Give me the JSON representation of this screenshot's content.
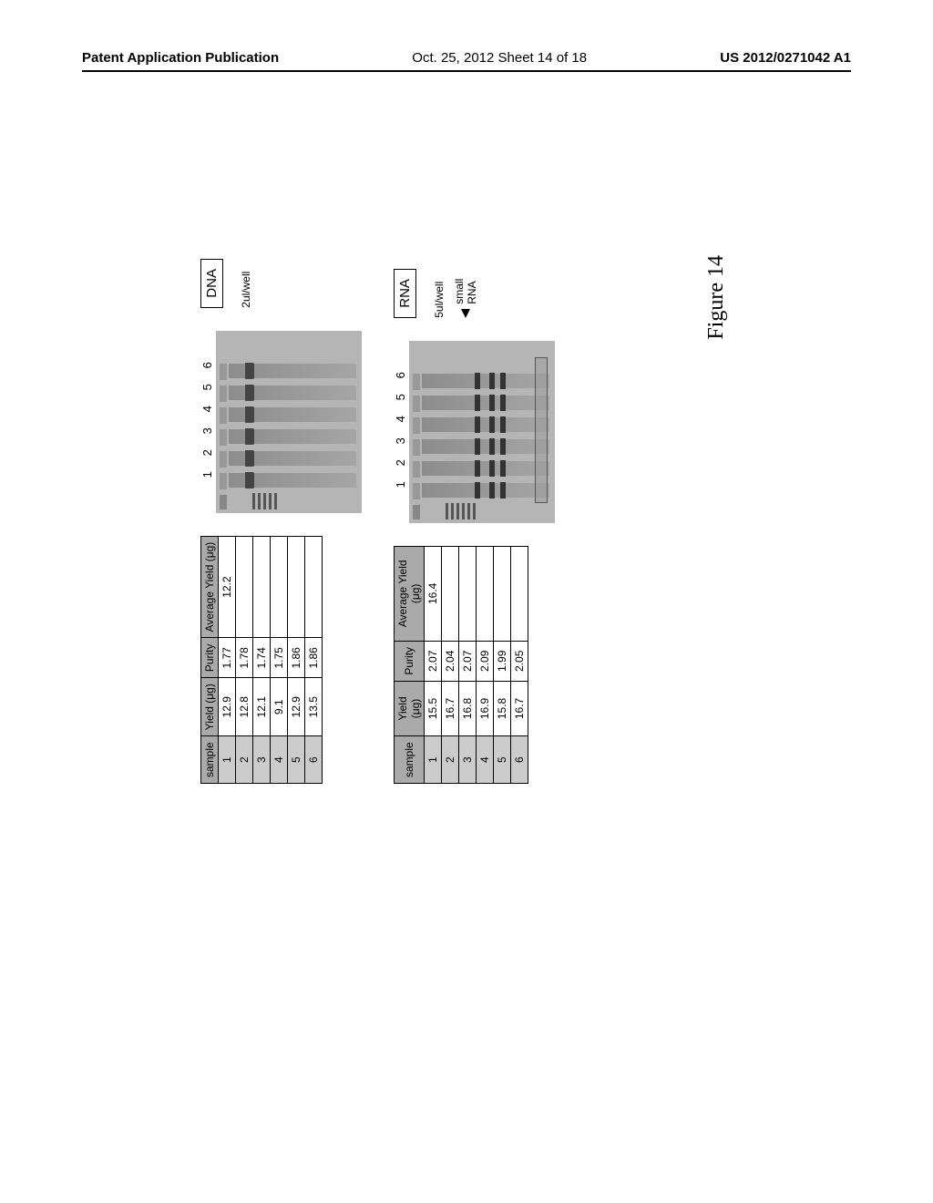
{
  "header": {
    "left": "Patent Application Publication",
    "center": "Oct. 25, 2012  Sheet 14 of 18",
    "right": "US 2012/0271042 A1"
  },
  "dna_table": {
    "headers": [
      "sample",
      "Yield (μg)",
      "Purity",
      "Average Yield (μg)"
    ],
    "rows": [
      [
        "1",
        "12.9",
        "1.77",
        "12.2"
      ],
      [
        "2",
        "12.8",
        "1.78",
        ""
      ],
      [
        "3",
        "12.1",
        "1.74",
        ""
      ],
      [
        "4",
        "9.1",
        "1.75",
        ""
      ],
      [
        "5",
        "12.9",
        "1.86",
        ""
      ],
      [
        "6",
        "13.5",
        "1.86",
        ""
      ]
    ]
  },
  "rna_table": {
    "headers": [
      "sample",
      "Yield (μg)",
      "Purity",
      "Average Yield (μg)"
    ],
    "rows": [
      [
        "1",
        "15.5",
        "2.07",
        "16.4"
      ],
      [
        "2",
        "16.7",
        "2.04",
        ""
      ],
      [
        "3",
        "16.8",
        "2.07",
        ""
      ],
      [
        "4",
        "16.9",
        "2.09",
        ""
      ],
      [
        "5",
        "15.8",
        "1.99",
        ""
      ],
      [
        "6",
        "16.7",
        "2.05",
        ""
      ]
    ]
  },
  "gel_lane_labels": [
    "1",
    "2",
    "3",
    "4",
    "5",
    "6"
  ],
  "labels": {
    "dna": "DNA",
    "rna": "RNA",
    "dna_loading": "2ul/well",
    "rna_loading": "5ul/well",
    "small_rna": "small RNA"
  },
  "figure_caption": "Figure 14",
  "colors": {
    "page_bg": "#ffffff",
    "gel_bg": "#b5b5b5",
    "table_header_bg": "#aaaaaa",
    "table_firstcol_bg": "#cccccc",
    "border": "#000000"
  }
}
